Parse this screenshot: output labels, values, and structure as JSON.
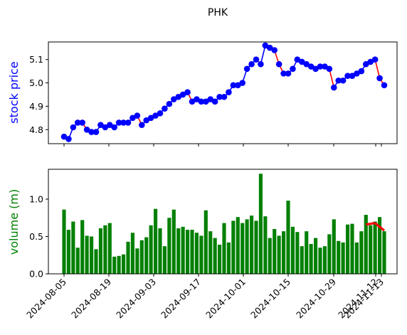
{
  "chart_data": {
    "title": "PHK",
    "x_ticks": [
      "2024-08-05",
      "2024-08-19",
      "2024-09-03",
      "2024-09-17",
      "2024-10-01",
      "2024-10-15",
      "2024-10-29",
      "2024-11-12",
      "2024-11-13"
    ],
    "top": {
      "type": "line",
      "ylabel": "stock price",
      "ylabel_color": "#0000ff",
      "ylim": [
        4.74,
        5.175
      ],
      "yticks": [
        "4.8",
        "4.9",
        "5.0",
        "5.1"
      ],
      "ytick_values": [
        4.8,
        4.9,
        5.0,
        5.1
      ],
      "series_color": "#0000ff",
      "downtrend_color": "#ff0000",
      "values": [
        4.77,
        4.76,
        4.81,
        4.83,
        4.83,
        4.8,
        4.79,
        4.79,
        4.82,
        4.81,
        4.82,
        4.81,
        4.83,
        4.83,
        4.83,
        4.85,
        4.86,
        4.82,
        4.84,
        4.85,
        4.86,
        4.87,
        4.89,
        4.91,
        4.93,
        4.94,
        4.95,
        4.96,
        4.92,
        4.93,
        4.92,
        4.92,
        4.93,
        4.92,
        4.94,
        4.94,
        4.96,
        4.99,
        4.99,
        5.0,
        5.06,
        5.08,
        5.1,
        5.08,
        5.16,
        5.15,
        5.14,
        5.08,
        5.04,
        5.04,
        5.06,
        5.1,
        5.09,
        5.08,
        5.07,
        5.06,
        5.07,
        5.07,
        5.06,
        4.98,
        5.01,
        5.01,
        5.03,
        5.03,
        5.04,
        5.05,
        5.08,
        5.09,
        5.1,
        5.02,
        4.99
      ]
    },
    "bottom": {
      "type": "bar",
      "ylabel": "volume (m)",
      "ylabel_color": "#008000",
      "ylim": [
        0,
        1.4
      ],
      "yticks": [
        "0.0",
        "0.5",
        "1.0"
      ],
      "ytick_values": [
        0.0,
        0.5,
        1.0
      ],
      "bar_color": "#008000",
      "trend_color": "#ff0000",
      "values": [
        0.86,
        0.59,
        0.7,
        0.35,
        0.72,
        0.51,
        0.5,
        0.33,
        0.61,
        0.65,
        0.68,
        0.23,
        0.24,
        0.26,
        0.43,
        0.55,
        0.34,
        0.45,
        0.49,
        0.65,
        0.87,
        0.61,
        0.37,
        0.75,
        0.86,
        0.61,
        0.63,
        0.59,
        0.59,
        0.55,
        0.51,
        0.85,
        0.57,
        0.48,
        0.39,
        0.68,
        0.42,
        0.71,
        0.76,
        0.68,
        0.73,
        0.78,
        0.71,
        1.34,
        0.77,
        0.48,
        0.6,
        0.51,
        0.57,
        0.98,
        0.63,
        0.56,
        0.37,
        0.57,
        0.4,
        0.48,
        0.35,
        0.37,
        0.53,
        0.73,
        0.44,
        0.42,
        0.66,
        0.67,
        0.42,
        0.57,
        0.79,
        0.65,
        0.7,
        0.76,
        0.57
      ],
      "trend_values": [
        0.66,
        0.68,
        0.58
      ]
    }
  }
}
